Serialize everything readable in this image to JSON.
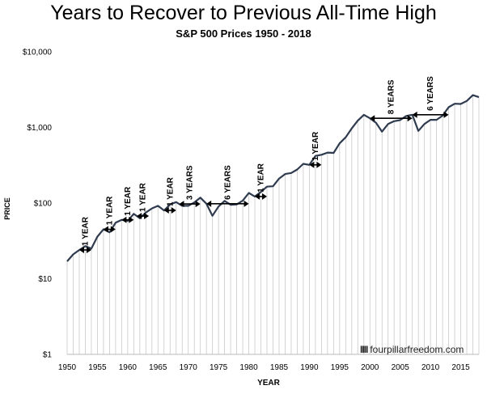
{
  "title": "Years to Recover to Previous All-Time High",
  "subtitle": "S&P 500 Prices 1950 - 2018",
  "watermark": "fourpillarfreedom.com",
  "chart_data": {
    "type": "area",
    "scale": "log",
    "ylabel": "PRICE",
    "xlabel": "YEAR",
    "ylim": [
      1,
      10000
    ],
    "xlim": [
      1950,
      2018
    ],
    "y_ticks": [
      {
        "value": 1,
        "label": "$1"
      },
      {
        "value": 10,
        "label": "$10"
      },
      {
        "value": 100,
        "label": "$100"
      },
      {
        "value": 1000,
        "label": "$1,000"
      },
      {
        "value": 10000,
        "label": "$10,000"
      }
    ],
    "x_ticks": [
      1950,
      1955,
      1960,
      1965,
      1970,
      1975,
      1980,
      1985,
      1990,
      1995,
      2000,
      2005,
      2010,
      2015
    ],
    "line_color": "#2f3b4f",
    "grid": "vertical lines per year",
    "x": [
      1950,
      1951,
      1952,
      1953,
      1954,
      1955,
      1956,
      1957,
      1958,
      1959,
      1960,
      1961,
      1962,
      1963,
      1964,
      1965,
      1966,
      1967,
      1968,
      1969,
      1970,
      1971,
      1972,
      1973,
      1974,
      1975,
      1976,
      1977,
      1978,
      1979,
      1980,
      1981,
      1982,
      1983,
      1984,
      1985,
      1986,
      1987,
      1988,
      1989,
      1990,
      1991,
      1992,
      1993,
      1994,
      1995,
      1996,
      1997,
      1998,
      1999,
      2000,
      2001,
      2002,
      2003,
      2004,
      2005,
      2006,
      2007,
      2008,
      2009,
      2010,
      2011,
      2012,
      2013,
      2014,
      2015,
      2016,
      2017,
      2018
    ],
    "values": [
      17,
      21,
      24,
      27,
      25,
      36,
      45,
      41,
      55,
      60,
      58,
      72,
      63,
      75,
      85,
      92,
      80,
      96,
      103,
      92,
      92,
      102,
      118,
      98,
      68,
      90,
      107,
      95,
      96,
      108,
      136,
      122,
      140,
      165,
      167,
      211,
      242,
      250,
      278,
      330,
      320,
      420,
      435,
      465,
      460,
      615,
      740,
      970,
      1230,
      1470,
      1320,
      1150,
      880,
      1110,
      1210,
      1250,
      1420,
      1470,
      900,
      1110,
      1260,
      1260,
      1430,
      1850,
      2060,
      2040,
      2240,
      2670,
      2510
    ],
    "annotations": [
      {
        "label": "1 YEAR",
        "from": 1952,
        "to": 1954
      },
      {
        "label": "1 YEAR",
        "from": 1956,
        "to": 1958
      },
      {
        "label": "1 YEAR",
        "from": 1959,
        "to": 1961
      },
      {
        "label": "1 YEAR",
        "from": 1961.5,
        "to": 1963.5
      },
      {
        "label": "1 YEAR",
        "from": 1966,
        "to": 1968
      },
      {
        "label": "3 YEARS",
        "from": 1968.5,
        "to": 1972
      },
      {
        "label": "6 YEARS",
        "from": 1973,
        "to": 1980
      },
      {
        "label": "1 YEAR",
        "from": 1981,
        "to": 1983
      },
      {
        "label": "1 YEAR",
        "from": 1990,
        "to": 1992
      },
      {
        "label": "8 YEARS",
        "from": 2000,
        "to": 2007
      },
      {
        "label": "6 YEARS",
        "from": 2007,
        "to": 2013
      }
    ]
  }
}
